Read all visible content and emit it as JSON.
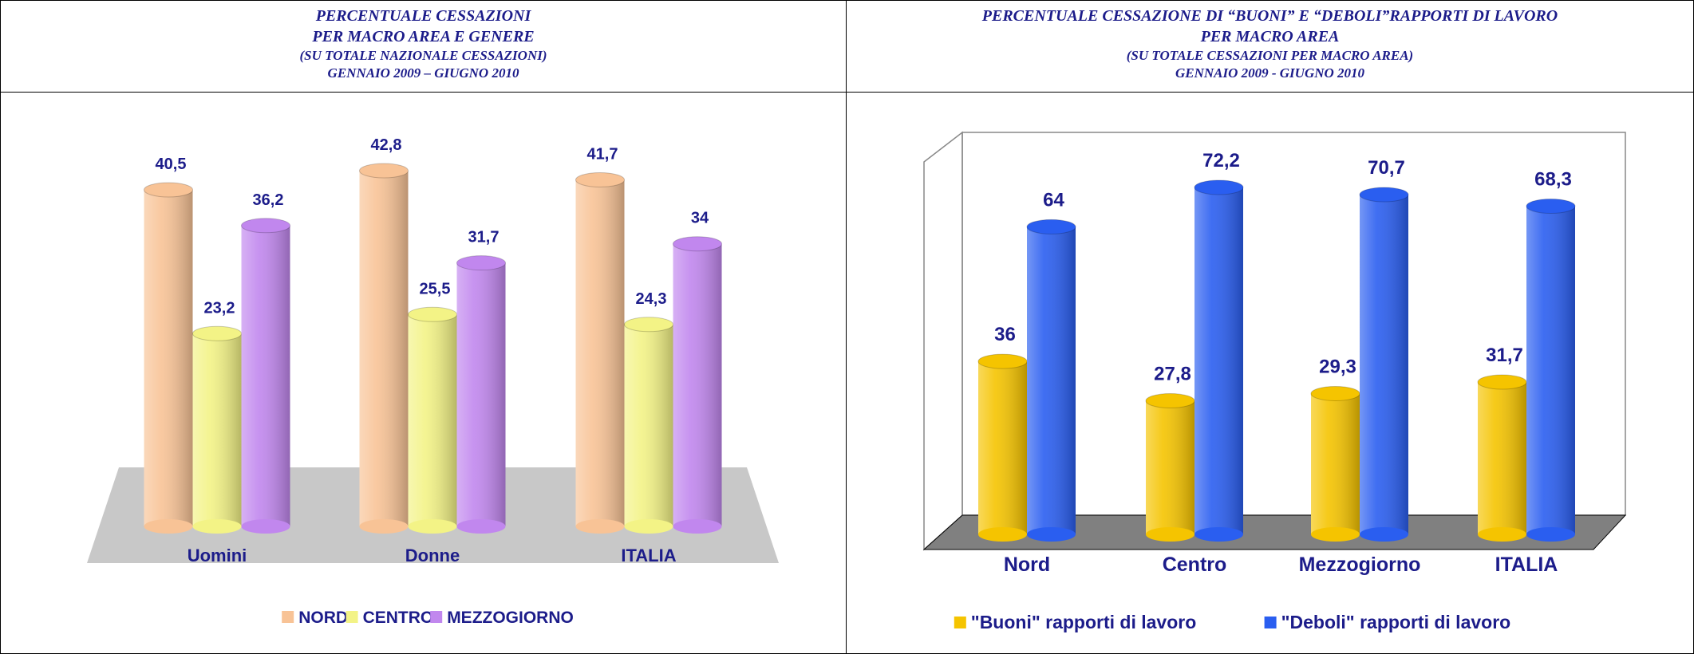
{
  "chart_data": [
    {
      "type": "bar",
      "title": [
        "PERCENTUALE CESSAZIONI",
        "PER MACRO AREA E GENERE",
        "(SU TOTALE NAZIONALE CESSAZIONI)",
        "GENNAIO 2009 – GIUGNO 2010"
      ],
      "categories": [
        "Uomini",
        "Donne",
        "ITALIA"
      ],
      "series": [
        {
          "name": "NORD",
          "color": "#f8c396",
          "values": [
            40.5,
            42.8,
            41.7
          ],
          "value_labels": [
            "40,5",
            "42,8",
            "41,7"
          ]
        },
        {
          "name": "CENTRO",
          "color": "#f3f386",
          "values": [
            23.2,
            25.5,
            24.3
          ],
          "value_labels": [
            "23,2",
            "25,5",
            "24,3"
          ]
        },
        {
          "name": "MEZZOGIORNO",
          "color": "#c187ee",
          "values": [
            36.2,
            31.7,
            34
          ],
          "value_labels": [
            "36,2",
            "31,7",
            "34"
          ]
        }
      ],
      "ylim": [
        0,
        50
      ],
      "legend": "bottom"
    },
    {
      "type": "bar",
      "title": [
        "PERCENTUALE CESSAZIONE DI  “BUONI” E “DEBOLI”RAPPORTI DI LAVORO",
        "PER MACRO AREA",
        "(SU TOTALE CESSAZIONI PER MACRO AREA)",
        "GENNAIO 2009 - GIUGNO 2010"
      ],
      "categories": [
        "Nord",
        "Centro",
        "Mezzogiorno",
        "ITALIA"
      ],
      "series": [
        {
          "name": "\"Buoni\" rapporti di lavoro",
          "color": "#f5c400",
          "values": [
            36,
            27.8,
            29.3,
            31.7
          ],
          "value_labels": [
            "36",
            "27,8",
            "29,3",
            "31,7"
          ]
        },
        {
          "name": "\"Deboli\" rapporti di lavoro",
          "color": "#2a5ef0",
          "values": [
            64,
            72.2,
            70.7,
            68.3
          ],
          "value_labels": [
            "64",
            "72,2",
            "70,7",
            "68,3"
          ]
        }
      ],
      "ylim": [
        0,
        80
      ],
      "legend": "bottom"
    }
  ]
}
